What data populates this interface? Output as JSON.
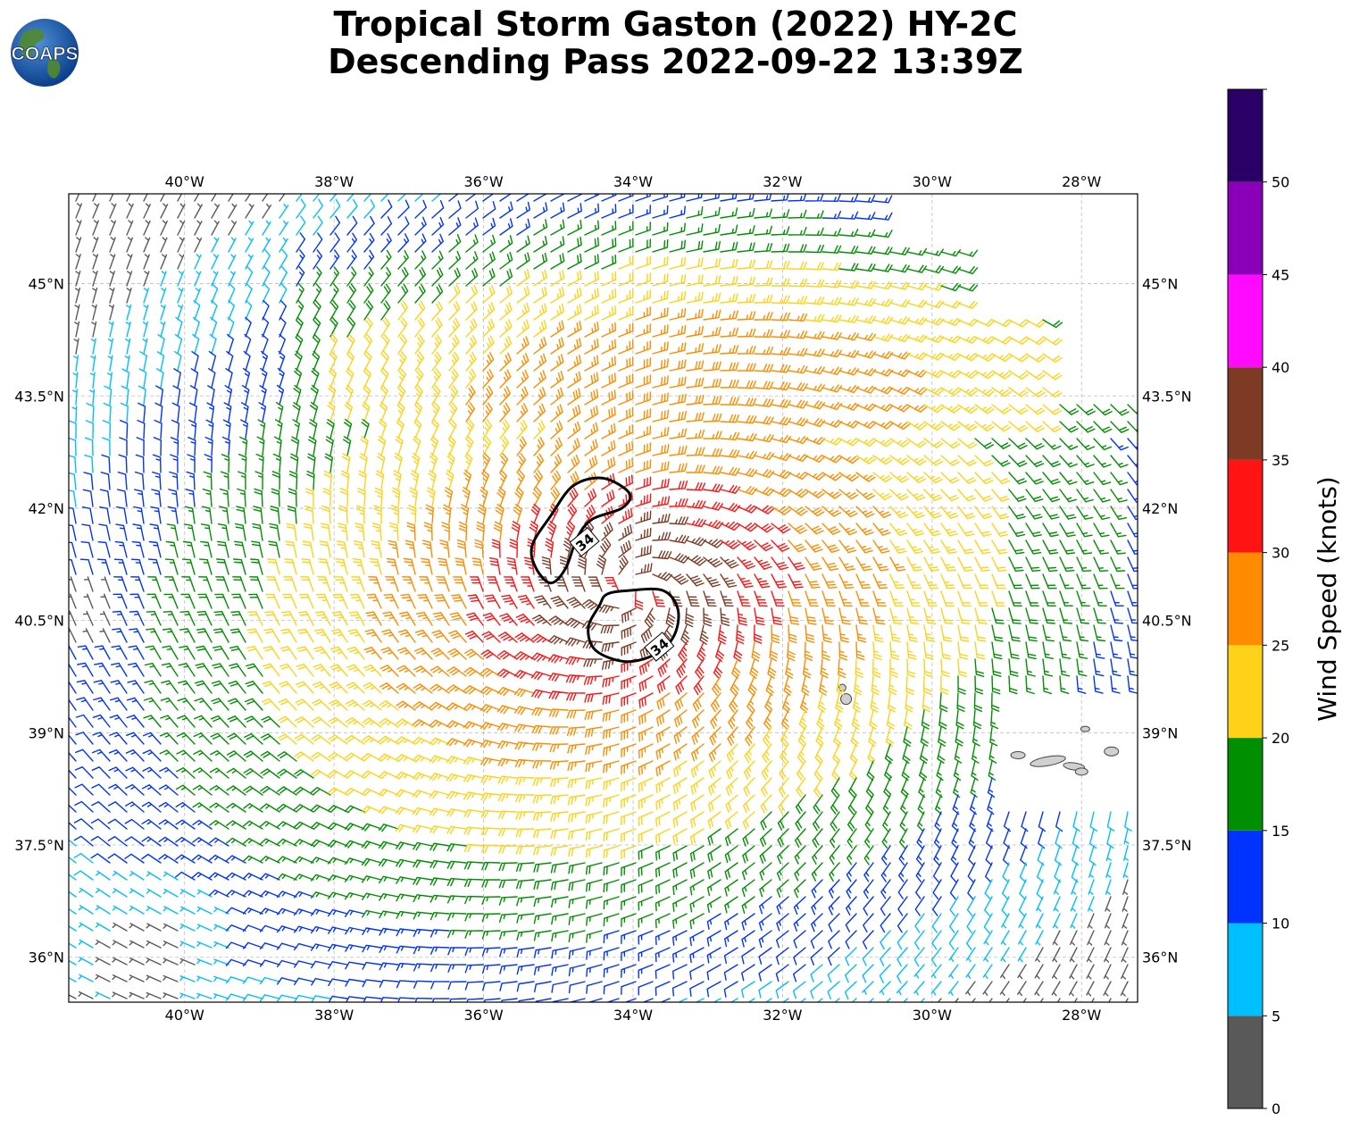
{
  "title": {
    "line1": "Tropical Storm Gaston (2022) HY-2C",
    "line2": "Descending Pass 2022-09-22 13:39Z"
  },
  "logo": {
    "text": "COAPS",
    "icon": "globe-logo"
  },
  "map": {
    "lon_range": [
      -41.55,
      -27.25
    ],
    "lat_range": [
      35.4,
      46.2
    ],
    "lon_ticks": [
      {
        "value": -40,
        "label": "40°W"
      },
      {
        "value": -38,
        "label": "38°W"
      },
      {
        "value": -36,
        "label": "36°W"
      },
      {
        "value": -34,
        "label": "34°W"
      },
      {
        "value": -32,
        "label": "32°W"
      },
      {
        "value": -30,
        "label": "30°W"
      },
      {
        "value": -28,
        "label": "28°W"
      }
    ],
    "lat_ticks": [
      {
        "value": 45,
        "label": "45°N"
      },
      {
        "value": 43.5,
        "label": "43.5°N"
      },
      {
        "value": 42,
        "label": "42°N"
      },
      {
        "value": 40.5,
        "label": "40.5°N"
      },
      {
        "value": 39,
        "label": "39°N"
      },
      {
        "value": 37.5,
        "label": "37.5°N"
      },
      {
        "value": 36,
        "label": "36°N"
      }
    ],
    "gridlines": true,
    "storm_center": {
      "lon": -34.0,
      "lat": 40.9
    },
    "contour_label": "34",
    "contours": [
      {
        "label": "34",
        "points": [
          [
            -35.3,
            41.2
          ],
          [
            -35.1,
            41.0
          ],
          [
            -34.9,
            41.2
          ],
          [
            -34.75,
            41.6
          ],
          [
            -34.55,
            41.85
          ],
          [
            -34.15,
            42.0
          ],
          [
            -34.05,
            42.2
          ],
          [
            -34.4,
            42.4
          ],
          [
            -34.8,
            42.3
          ],
          [
            -35.1,
            41.9
          ],
          [
            -35.35,
            41.5
          ]
        ],
        "label_at": [
          -34.65,
          41.55
        ]
      },
      {
        "label": "34",
        "points": [
          [
            -34.45,
            40.7
          ],
          [
            -34.6,
            40.4
          ],
          [
            -34.5,
            40.1
          ],
          [
            -34.1,
            39.95
          ],
          [
            -33.7,
            40.05
          ],
          [
            -33.45,
            40.3
          ],
          [
            -33.4,
            40.65
          ],
          [
            -33.6,
            40.9
          ],
          [
            -34.05,
            40.9
          ],
          [
            -34.35,
            40.85
          ]
        ],
        "label_at": [
          -33.65,
          40.15
        ]
      }
    ],
    "land": [
      {
        "name": "Azores central group",
        "lon": -28.3,
        "lat": 38.6
      },
      {
        "name": "Azores western group",
        "lon": -31.2,
        "lat": 39.45
      }
    ]
  },
  "colorbar": {
    "label": "Wind Speed (knots)",
    "ticks": [
      "0",
      "5",
      "10",
      "15",
      "20",
      "25",
      "30",
      "35",
      "40",
      "45",
      "50"
    ],
    "bins": [
      {
        "min": 0,
        "max": 5,
        "color": "#595959"
      },
      {
        "min": 5,
        "max": 10,
        "color": "#00bfff"
      },
      {
        "min": 10,
        "max": 15,
        "color": "#0033ff"
      },
      {
        "min": 15,
        "max": 20,
        "color": "#008f00"
      },
      {
        "min": 20,
        "max": 25,
        "color": "#ffd21a"
      },
      {
        "min": 25,
        "max": 30,
        "color": "#ff8c00"
      },
      {
        "min": 30,
        "max": 35,
        "color": "#ff1414"
      },
      {
        "min": 35,
        "max": 40,
        "color": "#7f3a26"
      },
      {
        "min": 40,
        "max": 45,
        "color": "#ff0aff"
      },
      {
        "min": 45,
        "max": 50,
        "color": "#8a00b8"
      },
      {
        "min": 50,
        "max": 55,
        "color": "#2b0066"
      }
    ]
  }
}
